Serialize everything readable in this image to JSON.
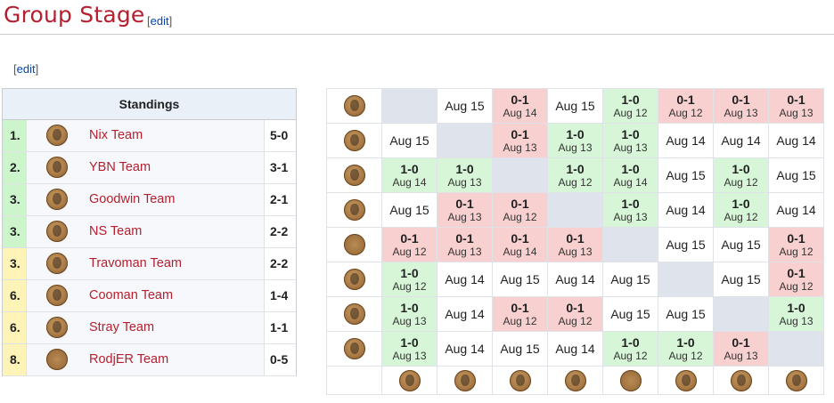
{
  "heading": {
    "title": "Group Stage",
    "edit_label": "edit"
  },
  "section": {
    "edit_label": "edit"
  },
  "standings": {
    "title": "Standings",
    "rows": [
      {
        "rank": "1.",
        "team": "Nix Team",
        "score": "5-0",
        "rank_color": "#ccf5cc",
        "logo": "face"
      },
      {
        "rank": "2.",
        "team": "YBN Team",
        "score": "3-1",
        "rank_color": "#ccf5cc",
        "logo": "face"
      },
      {
        "rank": "3.",
        "team": "Goodwin Team",
        "score": "2-1",
        "rank_color": "#ccf5cc",
        "logo": "face"
      },
      {
        "rank": "3.",
        "team": "NS Team",
        "score": "2-2",
        "rank_color": "#ccf5cc",
        "logo": "face"
      },
      {
        "rank": "3.",
        "team": "Travoman Team",
        "score": "2-2",
        "rank_color": "#fff4b8",
        "logo": "face"
      },
      {
        "rank": "6.",
        "team": "Cooman Team",
        "score": "1-4",
        "rank_color": "#fff4b8",
        "logo": "face"
      },
      {
        "rank": "6.",
        "team": "Stray Team",
        "score": "1-1",
        "rank_color": "#fff4b8",
        "logo": "face"
      },
      {
        "rank": "8.",
        "team": "RodjER Team",
        "score": "0-5",
        "rank_color": "#fff4b8",
        "logo": "plain"
      }
    ]
  },
  "crosstable": {
    "row_logos": [
      "face",
      "face",
      "face",
      "face",
      "plain",
      "face",
      "face",
      "face"
    ],
    "col_logos": [
      "face",
      "face",
      "face",
      "face",
      "plain",
      "face",
      "face",
      "face"
    ],
    "rows": [
      [
        {
          "t": "diag"
        },
        {
          "t": "date",
          "d": "Aug 15"
        },
        {
          "t": "loss",
          "s": "0-1",
          "d": "Aug 14"
        },
        {
          "t": "date",
          "d": "Aug 15"
        },
        {
          "t": "win",
          "s": "1-0",
          "d": "Aug 12"
        },
        {
          "t": "loss",
          "s": "0-1",
          "d": "Aug 12"
        },
        {
          "t": "loss",
          "s": "0-1",
          "d": "Aug 13"
        },
        {
          "t": "loss",
          "s": "0-1",
          "d": "Aug 13"
        }
      ],
      [
        {
          "t": "date",
          "d": "Aug 15"
        },
        {
          "t": "diag"
        },
        {
          "t": "loss",
          "s": "0-1",
          "d": "Aug 13"
        },
        {
          "t": "win",
          "s": "1-0",
          "d": "Aug 13"
        },
        {
          "t": "win",
          "s": "1-0",
          "d": "Aug 13"
        },
        {
          "t": "date",
          "d": "Aug 14"
        },
        {
          "t": "date",
          "d": "Aug 14"
        },
        {
          "t": "date",
          "d": "Aug 14"
        }
      ],
      [
        {
          "t": "win",
          "s": "1-0",
          "d": "Aug 14"
        },
        {
          "t": "win",
          "s": "1-0",
          "d": "Aug 13"
        },
        {
          "t": "diag"
        },
        {
          "t": "win",
          "s": "1-0",
          "d": "Aug 12"
        },
        {
          "t": "win",
          "s": "1-0",
          "d": "Aug 14"
        },
        {
          "t": "date",
          "d": "Aug 15"
        },
        {
          "t": "win",
          "s": "1-0",
          "d": "Aug 12"
        },
        {
          "t": "date",
          "d": "Aug 15"
        }
      ],
      [
        {
          "t": "date",
          "d": "Aug 15"
        },
        {
          "t": "loss",
          "s": "0-1",
          "d": "Aug 13"
        },
        {
          "t": "loss",
          "s": "0-1",
          "d": "Aug 12"
        },
        {
          "t": "diag"
        },
        {
          "t": "win",
          "s": "1-0",
          "d": "Aug 13"
        },
        {
          "t": "date",
          "d": "Aug 14"
        },
        {
          "t": "win",
          "s": "1-0",
          "d": "Aug 12"
        },
        {
          "t": "date",
          "d": "Aug 14"
        }
      ],
      [
        {
          "t": "loss",
          "s": "0-1",
          "d": "Aug 12"
        },
        {
          "t": "loss",
          "s": "0-1",
          "d": "Aug 13"
        },
        {
          "t": "loss",
          "s": "0-1",
          "d": "Aug 14"
        },
        {
          "t": "loss",
          "s": "0-1",
          "d": "Aug 13"
        },
        {
          "t": "diag"
        },
        {
          "t": "date",
          "d": "Aug 15"
        },
        {
          "t": "date",
          "d": "Aug 15"
        },
        {
          "t": "loss",
          "s": "0-1",
          "d": "Aug 12"
        }
      ],
      [
        {
          "t": "win",
          "s": "1-0",
          "d": "Aug 12"
        },
        {
          "t": "date",
          "d": "Aug 14"
        },
        {
          "t": "date",
          "d": "Aug 15"
        },
        {
          "t": "date",
          "d": "Aug 14"
        },
        {
          "t": "date",
          "d": "Aug 15"
        },
        {
          "t": "diag"
        },
        {
          "t": "date",
          "d": "Aug 15"
        },
        {
          "t": "loss",
          "s": "0-1",
          "d": "Aug 12"
        }
      ],
      [
        {
          "t": "win",
          "s": "1-0",
          "d": "Aug 13"
        },
        {
          "t": "date",
          "d": "Aug 14"
        },
        {
          "t": "loss",
          "s": "0-1",
          "d": "Aug 12"
        },
        {
          "t": "loss",
          "s": "0-1",
          "d": "Aug 12"
        },
        {
          "t": "date",
          "d": "Aug 15"
        },
        {
          "t": "date",
          "d": "Aug 15"
        },
        {
          "t": "diag"
        },
        {
          "t": "win",
          "s": "1-0",
          "d": "Aug 13"
        }
      ],
      [
        {
          "t": "win",
          "s": "1-0",
          "d": "Aug 13"
        },
        {
          "t": "date",
          "d": "Aug 14"
        },
        {
          "t": "date",
          "d": "Aug 15"
        },
        {
          "t": "date",
          "d": "Aug 14"
        },
        {
          "t": "win",
          "s": "1-0",
          "d": "Aug 12"
        },
        {
          "t": "win",
          "s": "1-0",
          "d": "Aug 12"
        },
        {
          "t": "loss",
          "s": "0-1",
          "d": "Aug 13"
        },
        {
          "t": "diag"
        }
      ]
    ]
  },
  "colors": {
    "title": "#b51f2e",
    "link": "#0645ad",
    "win": "#d7f6d7",
    "loss": "#f8d0d0",
    "diag": "#dfe3ec"
  }
}
